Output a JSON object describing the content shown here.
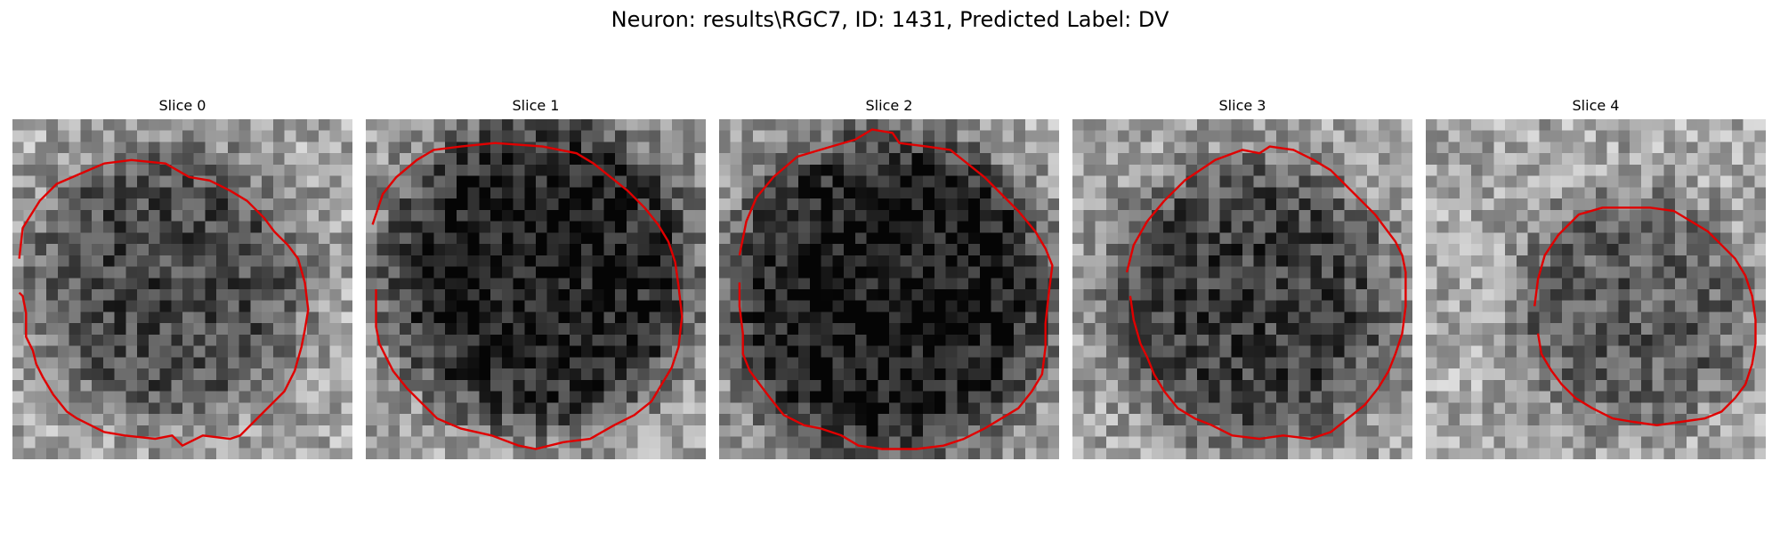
{
  "figure": {
    "title": "Neuron: results\\RGC7, ID: 1431, Predicted Label: DV"
  },
  "panels": [
    {
      "title": "Slice 0",
      "seed": 11,
      "center": [
        0.45,
        0.48
      ],
      "radius": 0.4,
      "darkness": 0.38
    },
    {
      "title": "Slice 1",
      "seed": 23,
      "center": [
        0.51,
        0.45
      ],
      "radius": 0.46,
      "darkness": 0.55
    },
    {
      "title": "Slice 2",
      "seed": 37,
      "center": [
        0.5,
        0.52
      ],
      "radius": 0.48,
      "darkness": 0.58
    },
    {
      "title": "Slice 3",
      "seed": 53,
      "center": [
        0.52,
        0.54
      ],
      "radius": 0.42,
      "darkness": 0.42
    },
    {
      "title": "Slice 4",
      "seed": 71,
      "center": [
        0.6,
        0.56
      ],
      "radius": 0.34,
      "darkness": 0.3
    }
  ],
  "contour_color": "#e00000",
  "contours": [
    [
      [
        0.02,
        0.41
      ],
      [
        0.03,
        0.32
      ],
      [
        0.08,
        0.24
      ],
      [
        0.13,
        0.19
      ],
      [
        0.2,
        0.16
      ],
      [
        0.27,
        0.13
      ],
      [
        0.35,
        0.12
      ],
      [
        0.45,
        0.13
      ],
      [
        0.52,
        0.17
      ],
      [
        0.58,
        0.18
      ],
      [
        0.64,
        0.21
      ],
      [
        0.69,
        0.24
      ],
      [
        0.74,
        0.29
      ],
      [
        0.77,
        0.33
      ],
      [
        0.81,
        0.37
      ],
      [
        0.84,
        0.41
      ],
      [
        0.86,
        0.48
      ],
      [
        0.87,
        0.56
      ],
      [
        0.86,
        0.62
      ],
      [
        0.85,
        0.67
      ],
      [
        0.83,
        0.74
      ],
      [
        0.8,
        0.8
      ],
      [
        0.77,
        0.83
      ],
      [
        0.74,
        0.86
      ],
      [
        0.71,
        0.89
      ],
      [
        0.67,
        0.93
      ],
      [
        0.64,
        0.94
      ],
      [
        0.56,
        0.93
      ],
      [
        0.5,
        0.96
      ],
      [
        0.47,
        0.93
      ],
      [
        0.42,
        0.94
      ],
      [
        0.33,
        0.93
      ],
      [
        0.27,
        0.92
      ],
      [
        0.23,
        0.9
      ],
      [
        0.19,
        0.88
      ],
      [
        0.16,
        0.86
      ],
      [
        0.12,
        0.81
      ],
      [
        0.09,
        0.76
      ],
      [
        0.07,
        0.72
      ],
      [
        0.06,
        0.68
      ],
      [
        0.04,
        0.64
      ],
      [
        0.04,
        0.57
      ],
      [
        0.03,
        0.52
      ],
      [
        0.02,
        0.51
      ]
    ],
    [
      [
        0.02,
        0.31
      ],
      [
        0.05,
        0.22
      ],
      [
        0.09,
        0.17
      ],
      [
        0.15,
        0.12
      ],
      [
        0.2,
        0.09
      ],
      [
        0.28,
        0.08
      ],
      [
        0.38,
        0.07
      ],
      [
        0.52,
        0.08
      ],
      [
        0.62,
        0.1
      ],
      [
        0.67,
        0.13
      ],
      [
        0.72,
        0.17
      ],
      [
        0.77,
        0.21
      ],
      [
        0.82,
        0.26
      ],
      [
        0.86,
        0.31
      ],
      [
        0.89,
        0.36
      ],
      [
        0.91,
        0.42
      ],
      [
        0.92,
        0.49
      ],
      [
        0.93,
        0.58
      ],
      [
        0.92,
        0.67
      ],
      [
        0.9,
        0.73
      ],
      [
        0.87,
        0.78
      ],
      [
        0.84,
        0.83
      ],
      [
        0.79,
        0.87
      ],
      [
        0.73,
        0.9
      ],
      [
        0.66,
        0.94
      ],
      [
        0.58,
        0.95
      ],
      [
        0.5,
        0.97
      ],
      [
        0.45,
        0.96
      ],
      [
        0.37,
        0.93
      ],
      [
        0.28,
        0.91
      ],
      [
        0.21,
        0.88
      ],
      [
        0.16,
        0.83
      ],
      [
        0.12,
        0.79
      ],
      [
        0.08,
        0.74
      ],
      [
        0.06,
        0.7
      ],
      [
        0.04,
        0.66
      ],
      [
        0.03,
        0.61
      ],
      [
        0.03,
        0.56
      ],
      [
        0.03,
        0.5
      ]
    ],
    [
      [
        0.06,
        0.4
      ],
      [
        0.08,
        0.3
      ],
      [
        0.11,
        0.23
      ],
      [
        0.16,
        0.17
      ],
      [
        0.23,
        0.11
      ],
      [
        0.33,
        0.08
      ],
      [
        0.4,
        0.06
      ],
      [
        0.45,
        0.03
      ],
      [
        0.51,
        0.04
      ],
      [
        0.53,
        0.07
      ],
      [
        0.61,
        0.08
      ],
      [
        0.68,
        0.09
      ],
      [
        0.73,
        0.13
      ],
      [
        0.78,
        0.17
      ],
      [
        0.83,
        0.22
      ],
      [
        0.88,
        0.27
      ],
      [
        0.93,
        0.33
      ],
      [
        0.96,
        0.38
      ],
      [
        0.98,
        0.43
      ],
      [
        0.97,
        0.51
      ],
      [
        0.96,
        0.6
      ],
      [
        0.96,
        0.67
      ],
      [
        0.95,
        0.75
      ],
      [
        0.92,
        0.8
      ],
      [
        0.88,
        0.85
      ],
      [
        0.83,
        0.88
      ],
      [
        0.78,
        0.91
      ],
      [
        0.72,
        0.94
      ],
      [
        0.66,
        0.96
      ],
      [
        0.58,
        0.97
      ],
      [
        0.48,
        0.97
      ],
      [
        0.41,
        0.96
      ],
      [
        0.36,
        0.93
      ],
      [
        0.3,
        0.91
      ],
      [
        0.25,
        0.9
      ],
      [
        0.19,
        0.87
      ],
      [
        0.15,
        0.82
      ],
      [
        0.12,
        0.78
      ],
      [
        0.09,
        0.74
      ],
      [
        0.07,
        0.69
      ],
      [
        0.07,
        0.63
      ],
      [
        0.06,
        0.55
      ],
      [
        0.06,
        0.48
      ]
    ],
    [
      [
        0.16,
        0.45
      ],
      [
        0.18,
        0.37
      ],
      [
        0.22,
        0.3
      ],
      [
        0.27,
        0.24
      ],
      [
        0.33,
        0.18
      ],
      [
        0.42,
        0.12
      ],
      [
        0.5,
        0.09
      ],
      [
        0.55,
        0.1
      ],
      [
        0.58,
        0.08
      ],
      [
        0.65,
        0.09
      ],
      [
        0.71,
        0.12
      ],
      [
        0.76,
        0.15
      ],
      [
        0.8,
        0.19
      ],
      [
        0.85,
        0.24
      ],
      [
        0.89,
        0.28
      ],
      [
        0.92,
        0.32
      ],
      [
        0.95,
        0.36
      ],
      [
        0.97,
        0.4
      ],
      [
        0.98,
        0.45
      ],
      [
        0.98,
        0.55
      ],
      [
        0.97,
        0.63
      ],
      [
        0.95,
        0.69
      ],
      [
        0.93,
        0.74
      ],
      [
        0.9,
        0.79
      ],
      [
        0.86,
        0.84
      ],
      [
        0.81,
        0.88
      ],
      [
        0.76,
        0.92
      ],
      [
        0.7,
        0.94
      ],
      [
        0.62,
        0.93
      ],
      [
        0.55,
        0.94
      ],
      [
        0.47,
        0.93
      ],
      [
        0.41,
        0.9
      ],
      [
        0.36,
        0.88
      ],
      [
        0.31,
        0.85
      ],
      [
        0.27,
        0.8
      ],
      [
        0.24,
        0.75
      ],
      [
        0.22,
        0.7
      ],
      [
        0.2,
        0.66
      ],
      [
        0.18,
        0.59
      ],
      [
        0.17,
        0.52
      ]
    ],
    [
      [
        0.32,
        0.55
      ],
      [
        0.33,
        0.47
      ],
      [
        0.35,
        0.4
      ],
      [
        0.39,
        0.34
      ],
      [
        0.45,
        0.28
      ],
      [
        0.52,
        0.26
      ],
      [
        0.59,
        0.26
      ],
      [
        0.66,
        0.26
      ],
      [
        0.73,
        0.27
      ],
      [
        0.78,
        0.3
      ],
      [
        0.83,
        0.33
      ],
      [
        0.87,
        0.37
      ],
      [
        0.91,
        0.41
      ],
      [
        0.94,
        0.46
      ],
      [
        0.96,
        0.52
      ],
      [
        0.97,
        0.59
      ],
      [
        0.97,
        0.66
      ],
      [
        0.96,
        0.72
      ],
      [
        0.94,
        0.78
      ],
      [
        0.91,
        0.82
      ],
      [
        0.87,
        0.86
      ],
      [
        0.82,
        0.88
      ],
      [
        0.75,
        0.89
      ],
      [
        0.68,
        0.9
      ],
      [
        0.61,
        0.89
      ],
      [
        0.55,
        0.88
      ],
      [
        0.49,
        0.85
      ],
      [
        0.44,
        0.82
      ],
      [
        0.4,
        0.78
      ],
      [
        0.37,
        0.74
      ],
      [
        0.34,
        0.69
      ],
      [
        0.33,
        0.63
      ]
    ]
  ]
}
